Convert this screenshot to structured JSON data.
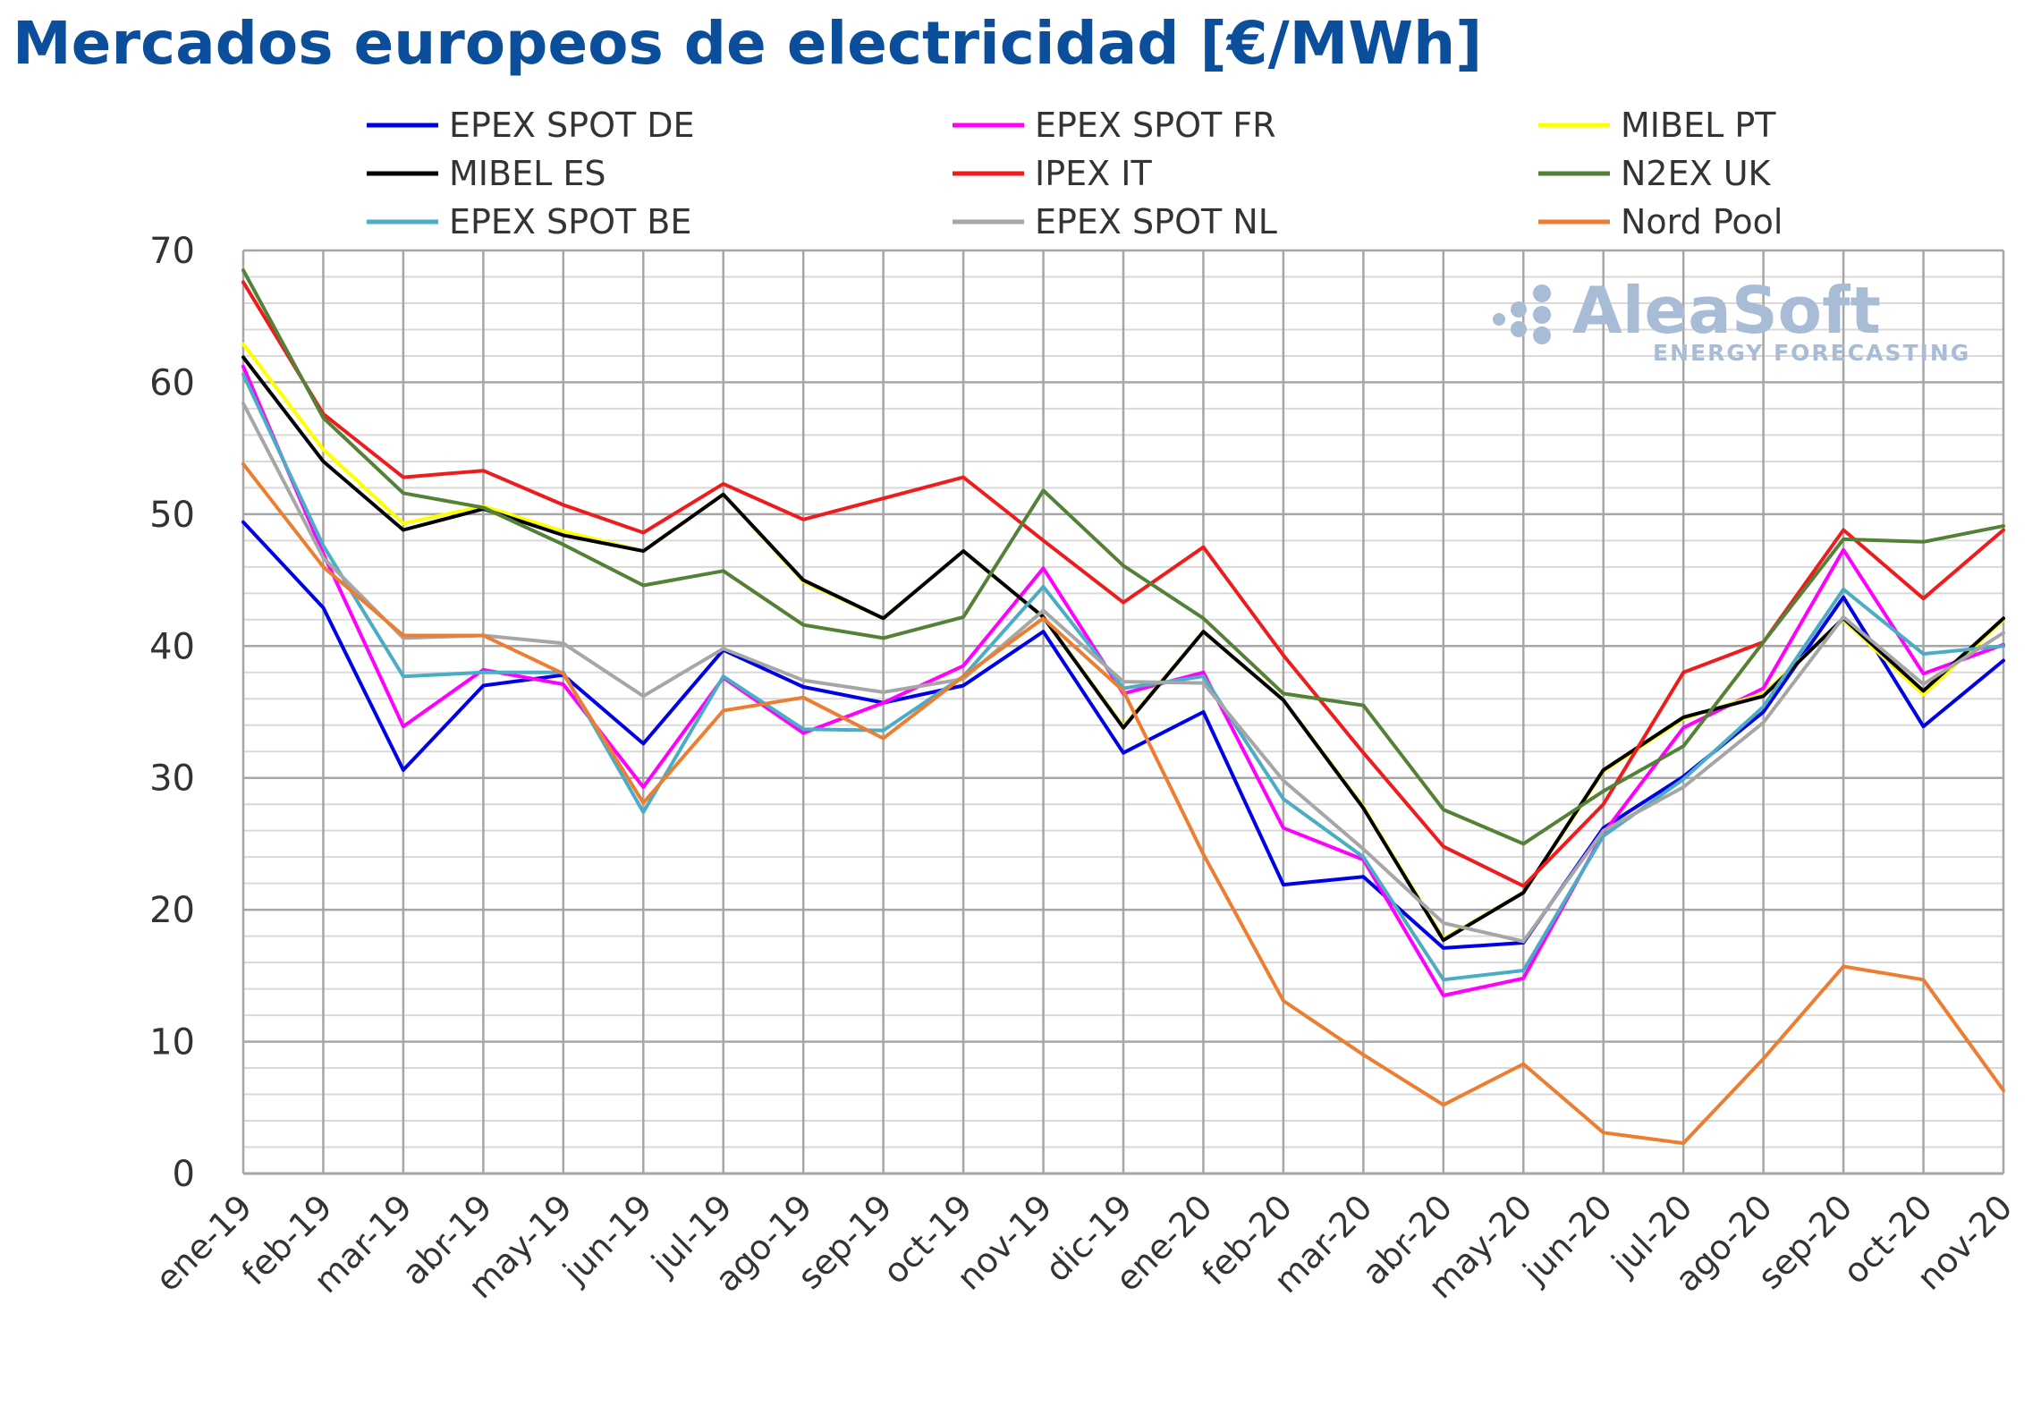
{
  "title": "Mercados europeos de electricidad [€/MWh]",
  "watermark": {
    "brand": "AleaSoft",
    "tagline": "ENERGY FORECASTING",
    "color": "#a9bcd6"
  },
  "chart_data": {
    "type": "line",
    "ylim": [
      0,
      70
    ],
    "yticks": [
      0,
      10,
      20,
      30,
      40,
      50,
      60,
      70
    ],
    "grid": true,
    "legend_position": "top",
    "categories": [
      "ene-19",
      "feb-19",
      "mar-19",
      "abr-19",
      "may-19",
      "jun-19",
      "jul-19",
      "ago-19",
      "sep-19",
      "oct-19",
      "nov-19",
      "dic-19",
      "ene-20",
      "feb-20",
      "mar-20",
      "abr-20",
      "may-20",
      "jun-20",
      "jul-20",
      "ago-20",
      "sep-20",
      "oct-20",
      "nov-20"
    ],
    "series": [
      {
        "name": "EPEX SPOT DE",
        "color": "#0000e6",
        "values": [
          49.4,
          42.9,
          30.6,
          37.0,
          37.8,
          32.6,
          39.7,
          36.9,
          35.7,
          37.0,
          41.1,
          31.9,
          35.0,
          21.9,
          22.5,
          17.1,
          17.5,
          26.2,
          30.1,
          35.0,
          43.7,
          33.9,
          38.9
        ]
      },
      {
        "name": "EPEX SPOT FR",
        "color": "#ff00ff",
        "values": [
          61.2,
          47.0,
          33.9,
          38.2,
          37.1,
          29.3,
          37.6,
          33.4,
          35.7,
          38.5,
          45.9,
          36.4,
          38.0,
          26.2,
          23.8,
          13.5,
          14.8,
          25.8,
          33.8,
          36.8,
          47.3,
          37.9,
          40.1
        ]
      },
      {
        "name": "MIBEL PT",
        "color": "#ffff00",
        "values": [
          62.9,
          54.9,
          49.3,
          50.6,
          48.7,
          47.2,
          51.5,
          44.9,
          42.1,
          47.2,
          42.2,
          33.9,
          41.1,
          35.9,
          27.8,
          17.8,
          21.3,
          30.5,
          34.5,
          36.4,
          42.0,
          36.3,
          42.0
        ]
      },
      {
        "name": "MIBEL ES",
        "color": "#000000",
        "values": [
          61.9,
          54.0,
          48.8,
          50.4,
          48.4,
          47.2,
          51.5,
          45.0,
          42.1,
          47.2,
          42.2,
          33.8,
          41.1,
          35.9,
          27.7,
          17.7,
          21.3,
          30.6,
          34.6,
          36.2,
          42.1,
          36.6,
          42.1
        ]
      },
      {
        "name": "IPEX IT",
        "color": "#ee1c1c",
        "values": [
          67.6,
          57.6,
          52.8,
          53.3,
          50.7,
          48.6,
          52.3,
          49.6,
          51.2,
          52.8,
          48.0,
          43.3,
          47.5,
          39.3,
          31.9,
          24.8,
          21.8,
          28.0,
          38.0,
          40.3,
          48.8,
          43.6,
          48.8
        ]
      },
      {
        "name": "N2EX UK",
        "color": "#538135",
        "values": [
          68.5,
          57.3,
          51.6,
          50.5,
          47.7,
          44.6,
          45.7,
          41.6,
          40.6,
          42.2,
          51.8,
          46.1,
          42.1,
          36.4,
          35.5,
          27.6,
          25.0,
          29.0,
          32.4,
          40.3,
          48.1,
          47.9,
          49.1
        ]
      },
      {
        "name": "EPEX SPOT BE",
        "color": "#4bacc6",
        "values": [
          60.6,
          47.6,
          37.7,
          38.0,
          38.0,
          27.4,
          37.7,
          33.7,
          33.6,
          37.7,
          44.5,
          36.8,
          37.7,
          28.4,
          24.0,
          14.7,
          15.4,
          25.6,
          29.9,
          35.4,
          44.3,
          39.4,
          40.0
        ]
      },
      {
        "name": "EPEX SPOT NL",
        "color": "#a6a6a6",
        "values": [
          58.4,
          46.7,
          40.6,
          40.8,
          40.2,
          36.2,
          39.8,
          37.4,
          36.5,
          37.5,
          42.7,
          37.3,
          37.2,
          29.8,
          24.6,
          19.0,
          17.6,
          26.0,
          29.3,
          34.2,
          42.2,
          37.1,
          41.0
        ]
      },
      {
        "name": "Nord Pool",
        "color": "#ed7d31",
        "values": [
          53.8,
          46.0,
          40.8,
          40.8,
          37.9,
          28.1,
          35.1,
          36.1,
          33.0,
          37.7,
          42.1,
          36.6,
          24.2,
          13.1,
          9.0,
          5.2,
          8.3,
          3.1,
          2.3,
          8.7,
          15.7,
          14.7,
          6.3
        ]
      }
    ]
  }
}
